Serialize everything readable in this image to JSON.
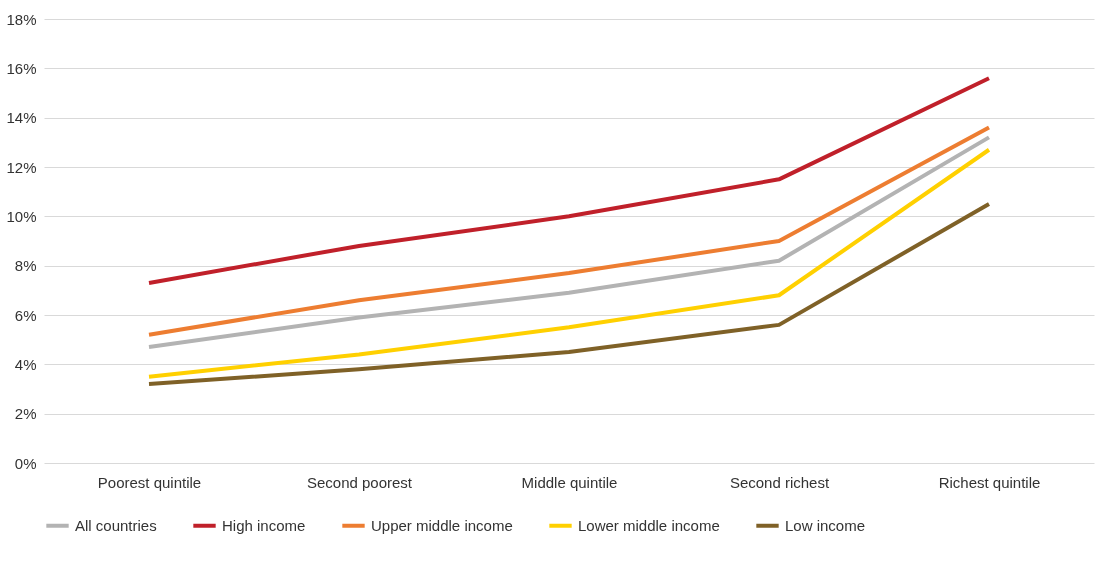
{
  "chart_data": {
    "type": "line",
    "categories": [
      "Poorest quintile",
      "Second poorest",
      "Middle quintile",
      "Second richest",
      "Richest quintile"
    ],
    "series": [
      {
        "name": "All countries",
        "color": "#b3b3b3",
        "values": [
          4.7,
          5.9,
          6.9,
          8.2,
          13.2
        ]
      },
      {
        "name": "High income",
        "color": "#c0202a",
        "values": [
          7.3,
          8.8,
          10.0,
          11.5,
          15.6
        ]
      },
      {
        "name": "Upper middle income",
        "color": "#ed7d31",
        "values": [
          5.2,
          6.6,
          7.7,
          9.0,
          13.6
        ]
      },
      {
        "name": "Lower middle income",
        "color": "#ffd000",
        "values": [
          3.5,
          4.4,
          5.5,
          6.8,
          12.7
        ]
      },
      {
        "name": "Low income",
        "color": "#7f6127",
        "values": [
          3.2,
          3.8,
          4.5,
          5.6,
          10.5
        ]
      }
    ],
    "ylim": [
      0,
      18
    ],
    "yticks": [
      {
        "value": 0,
        "label": "0%"
      },
      {
        "value": 2,
        "label": "2%"
      },
      {
        "value": 4,
        "label": "4%"
      },
      {
        "value": 6,
        "label": "6%"
      },
      {
        "value": 8,
        "label": "8%"
      },
      {
        "value": 10,
        "label": "10%"
      },
      {
        "value": 12,
        "label": "12%"
      },
      {
        "value": 14,
        "label": "14%"
      },
      {
        "value": 16,
        "label": "16%"
      },
      {
        "value": 18,
        "label": "18%"
      }
    ],
    "grid": "y",
    "legend": "bottom",
    "marker": "none",
    "line_style": "solid"
  }
}
